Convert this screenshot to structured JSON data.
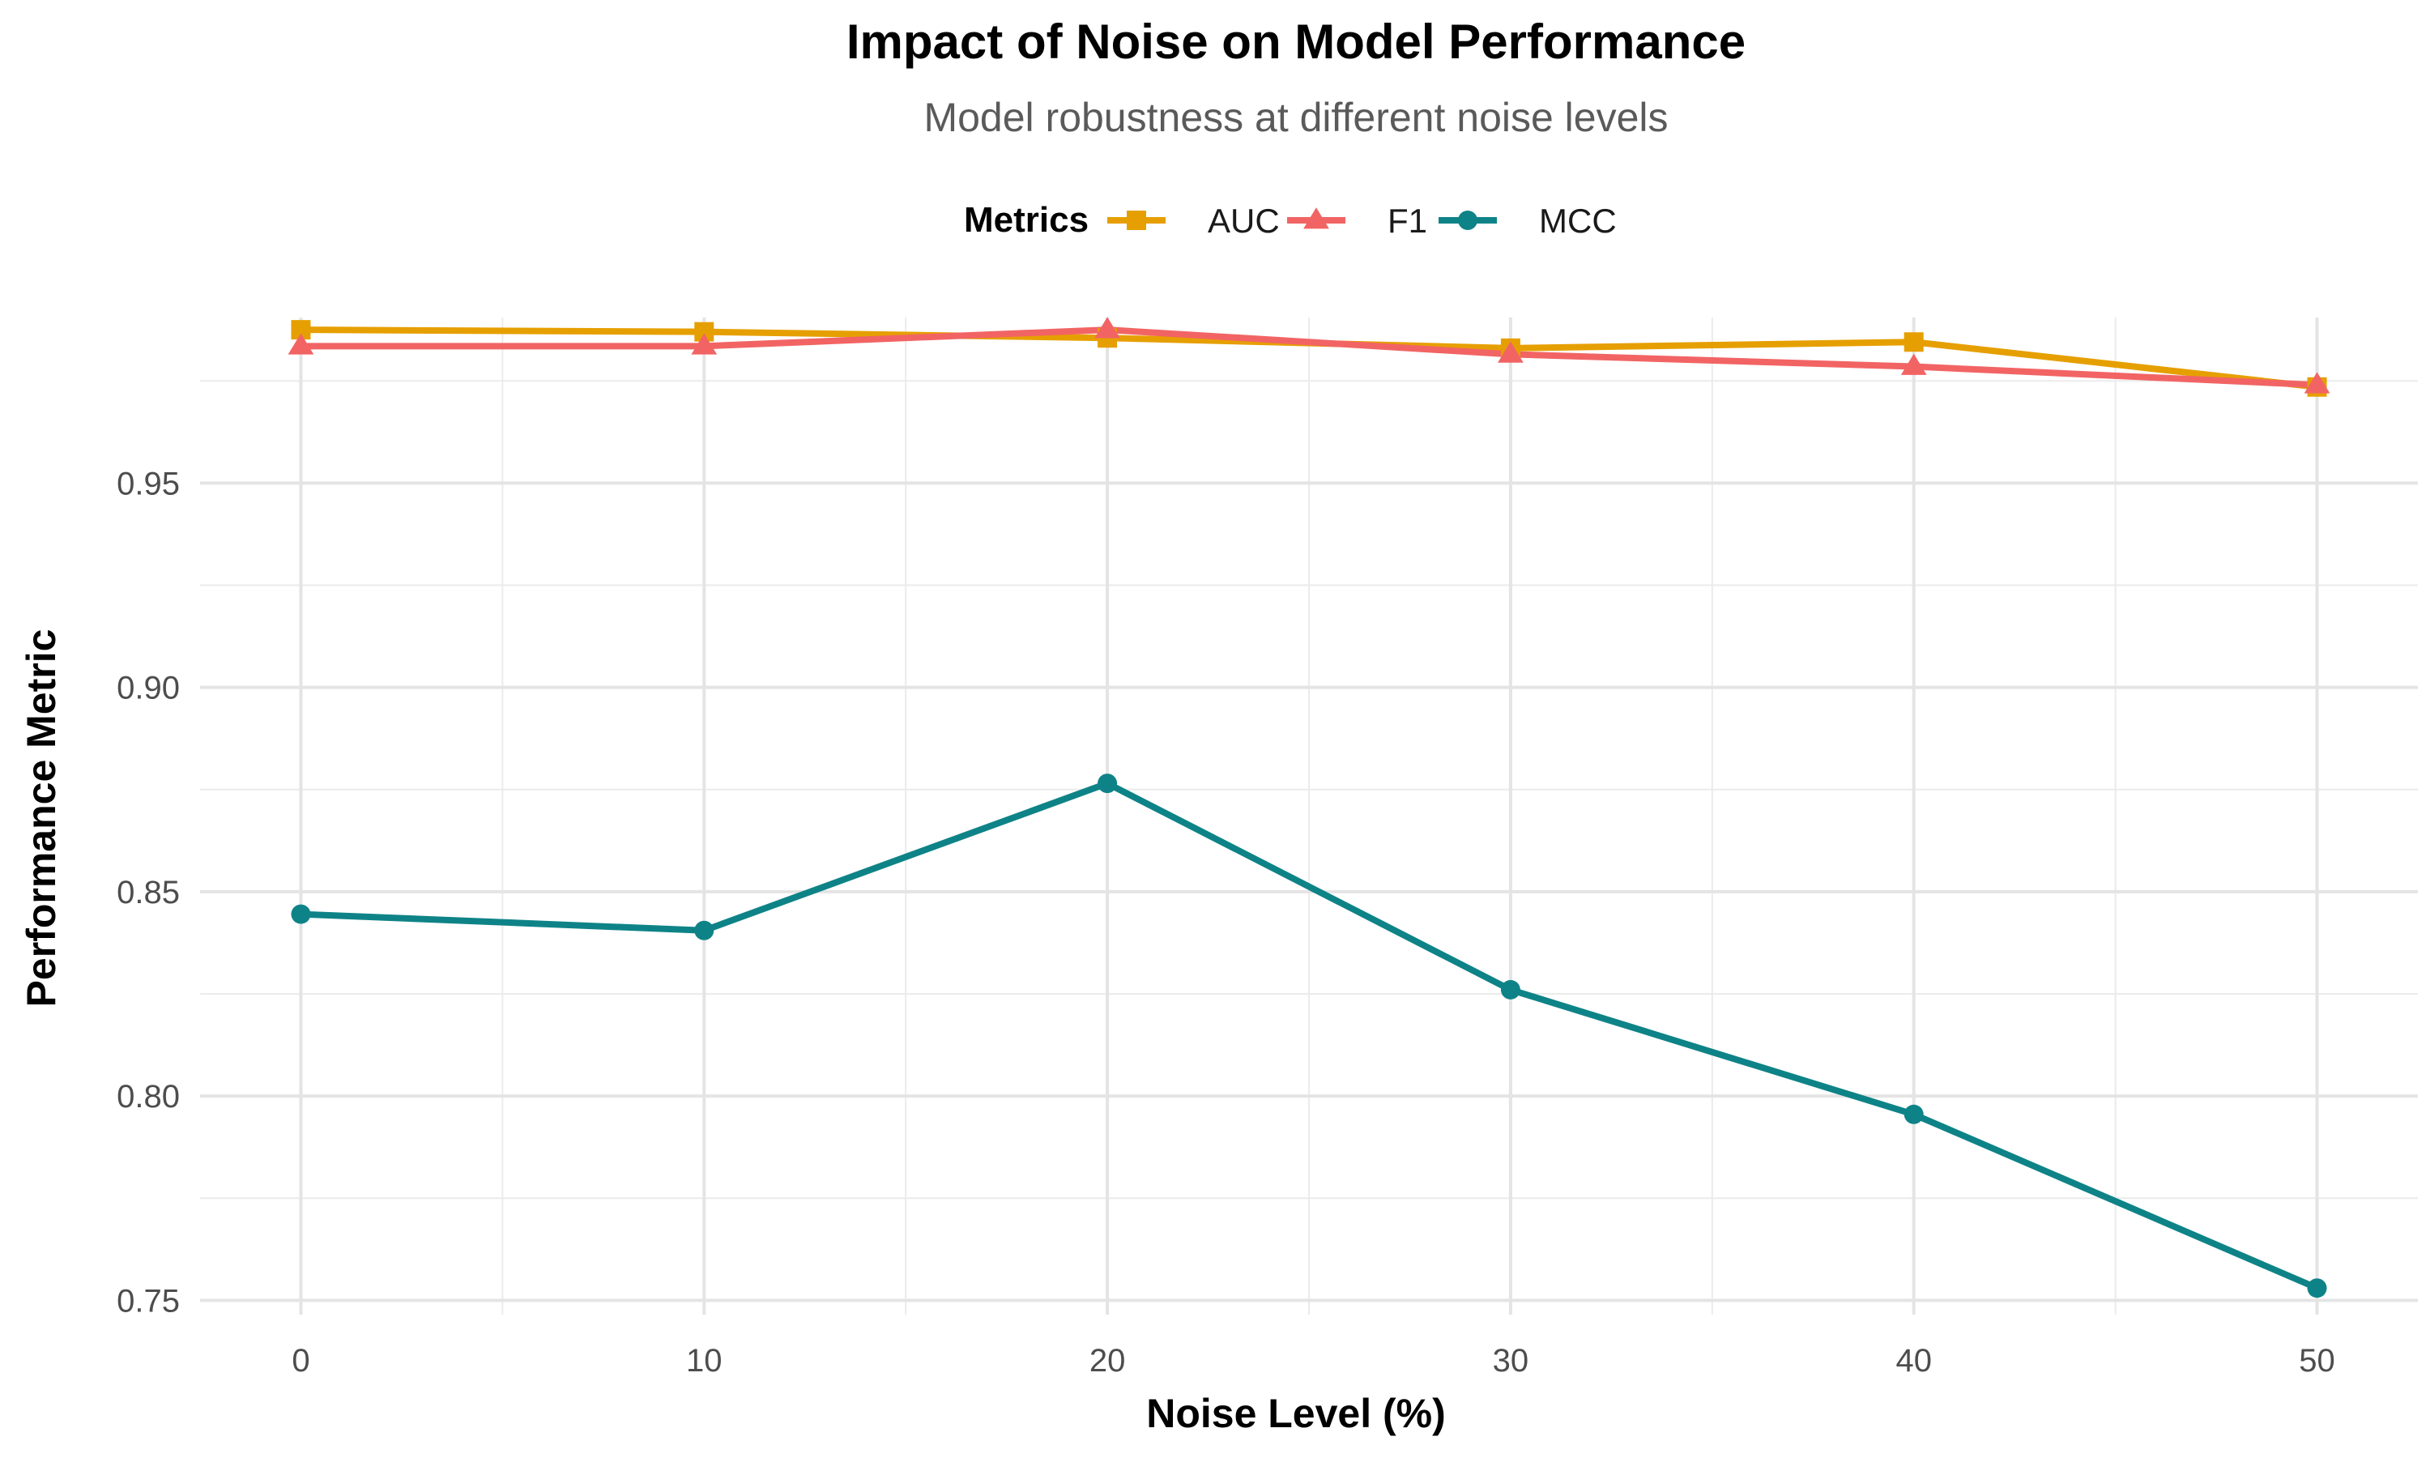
{
  "chart_data": {
    "type": "line",
    "title": "Impact of Noise on Model Performance",
    "subtitle": "Model robustness at different noise levels",
    "xlabel": "Noise Level (%)",
    "ylabel": "Performance Metric",
    "x": [
      0,
      10,
      20,
      30,
      40,
      50
    ],
    "xlim": [
      -2.5,
      52.5
    ],
    "ylim": [
      0.7465,
      0.9905
    ],
    "x_ticks": [
      0,
      10,
      20,
      30,
      40,
      50
    ],
    "y_ticks": [
      0.75,
      0.8,
      0.85,
      0.9,
      0.95
    ],
    "x_tick_labels": [
      "0",
      "10",
      "20",
      "30",
      "40",
      "50"
    ],
    "y_tick_labels": [
      "0.75",
      "0.80",
      "0.85",
      "0.90",
      "0.95"
    ],
    "grid": true,
    "legend_title": "Metrics",
    "legend_position": "top",
    "series": [
      {
        "name": "AUC",
        "color": "#E69F00",
        "marker": "square",
        "values": [
          0.9875,
          0.987,
          0.9855,
          0.983,
          0.9845,
          0.9735
        ]
      },
      {
        "name": "F1",
        "color": "#F26464",
        "marker": "triangle",
        "values": [
          0.9835,
          0.9835,
          0.9875,
          0.9815,
          0.9785,
          0.974
        ]
      },
      {
        "name": "MCC",
        "color": "#0E8387",
        "marker": "circle",
        "values": [
          0.8445,
          0.8405,
          0.8765,
          0.826,
          0.7955,
          0.753
        ]
      }
    ]
  }
}
